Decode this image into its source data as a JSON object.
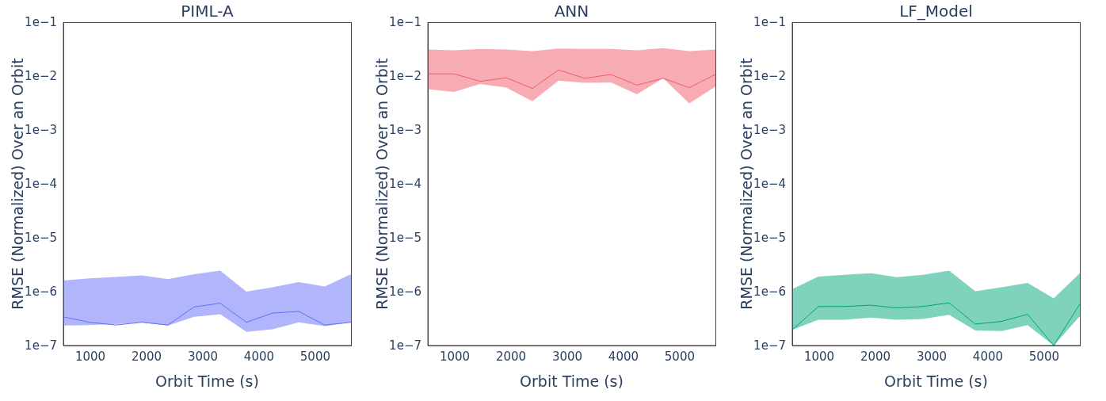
{
  "chart_data": [
    {
      "type": "line",
      "title": "PIML-A",
      "xlabel": "Orbit Time (s)",
      "ylabel": "RMSE (Normalized) Over an Orbit",
      "log": "y",
      "x": [
        520,
        985,
        1450,
        1915,
        2380,
        2845,
        3310,
        3775,
        4240,
        4705,
        5170,
        5635
      ],
      "xlim": [
        520,
        5635
      ],
      "xticks": [
        1000,
        2000,
        3000,
        4000,
        5000
      ],
      "ylim": [
        1e-07,
        0.1
      ],
      "yticks": [
        {
          "value": 1e-07,
          "label": "1e−7"
        },
        {
          "value": 1e-06,
          "label": "1e−6"
        },
        {
          "value": 1e-05,
          "label": "1e−5"
        },
        {
          "value": 0.0001,
          "label": "1e−4"
        },
        {
          "value": 0.001,
          "label": "1e−3"
        },
        {
          "value": 0.01,
          "label": "1e−2"
        },
        {
          "value": 0.1,
          "label": "1e−1"
        }
      ],
      "series": [
        {
          "color": "#636efa",
          "values": [
            3.4e-07,
            2.7e-07,
            2.4e-07,
            2.7e-07,
            2.4e-07,
            5.2e-07,
            6.1e-07,
            2.7e-07,
            4e-07,
            4.3e-07,
            2.4e-07,
            2.7e-07
          ],
          "lower": [
            2.35e-07,
            2.4e-07,
            2.5e-07,
            2.7e-07,
            2.35e-07,
            3.4e-07,
            3.8e-07,
            1.8e-07,
            2e-07,
            2.7e-07,
            2.3e-07,
            2.7e-07
          ],
          "upper": [
            1.6e-06,
            1.76e-06,
            1.87e-06,
            2e-06,
            1.7e-06,
            2.1e-06,
            2.45e-06,
            1e-06,
            1.2e-06,
            1.5e-06,
            1.25e-06,
            2.1e-06
          ]
        }
      ]
    },
    {
      "type": "line",
      "title": "ANN",
      "xlabel": "Orbit Time (s)",
      "ylabel": "RMSE (Normalized) Over an Orbit",
      "log": "y",
      "x": [
        520,
        985,
        1450,
        1915,
        2380,
        2845,
        3310,
        3775,
        4240,
        4705,
        5170,
        5635
      ],
      "xlim": [
        520,
        5635
      ],
      "xticks": [
        1000,
        2000,
        3000,
        4000,
        5000
      ],
      "ylim": [
        1e-07,
        0.1
      ],
      "yticks": [
        {
          "value": 1e-07,
          "label": "1e−7"
        },
        {
          "value": 1e-06,
          "label": "1e−6"
        },
        {
          "value": 1e-05,
          "label": "1e−5"
        },
        {
          "value": 0.0001,
          "label": "1e−4"
        },
        {
          "value": 0.001,
          "label": "1e−3"
        },
        {
          "value": 0.01,
          "label": "1e−2"
        },
        {
          "value": 0.1,
          "label": "1e−1"
        }
      ],
      "series": [
        {
          "color": "#ef5a6a",
          "values": [
            0.011,
            0.011,
            0.008,
            0.0093,
            0.0059,
            0.013,
            0.0091,
            0.0107,
            0.0068,
            0.0091,
            0.0061,
            0.0107
          ],
          "lower": [
            0.0057,
            0.0051,
            0.0071,
            0.0061,
            0.0034,
            0.0082,
            0.0075,
            0.0076,
            0.0046,
            0.0091,
            0.0031,
            0.0064
          ],
          "upper": [
            0.031,
            0.03,
            0.032,
            0.031,
            0.029,
            0.0325,
            0.032,
            0.032,
            0.03,
            0.033,
            0.029,
            0.031
          ]
        }
      ]
    },
    {
      "type": "line",
      "title": "LF_Model",
      "xlabel": "Orbit Time (s)",
      "ylabel": "RMSE (Normalized) Over an Orbit",
      "log": "y",
      "x": [
        520,
        985,
        1450,
        1915,
        2380,
        2845,
        3310,
        3775,
        4240,
        4705,
        5170,
        5635
      ],
      "xlim": [
        520,
        5635
      ],
      "xticks": [
        1000,
        2000,
        3000,
        4000,
        5000
      ],
      "ylim": [
        1e-07,
        0.1
      ],
      "yticks": [
        {
          "value": 1e-07,
          "label": "1e−7"
        },
        {
          "value": 1e-06,
          "label": "1e−6"
        },
        {
          "value": 1e-05,
          "label": "1e−5"
        },
        {
          "value": 0.0001,
          "label": "1e−4"
        },
        {
          "value": 0.001,
          "label": "1e−3"
        },
        {
          "value": 0.01,
          "label": "1e−2"
        },
        {
          "value": 0.1,
          "label": "1e−1"
        }
      ],
      "series": [
        {
          "color": "#00a57a",
          "values": [
            1.95e-07,
            5.3e-07,
            5.3e-07,
            5.6e-07,
            5e-07,
            5.3e-07,
            6.2e-07,
            2.5e-07,
            2.8e-07,
            3.8e-07,
            1e-07,
            5.9e-07
          ],
          "lower": [
            1.95e-07,
            3e-07,
            3e-07,
            3.3e-07,
            3e-07,
            3.1e-07,
            3.7e-07,
            1.9e-07,
            1.85e-07,
            2.4e-07,
            1e-07,
            3.5e-07
          ],
          "upper": [
            1.12e-06,
            1.9e-06,
            2.05e-06,
            2.2e-06,
            1.86e-06,
            2.05e-06,
            2.45e-06,
            1.02e-06,
            1.2e-06,
            1.45e-06,
            7.5e-07,
            2.2e-06
          ]
        }
      ]
    }
  ]
}
